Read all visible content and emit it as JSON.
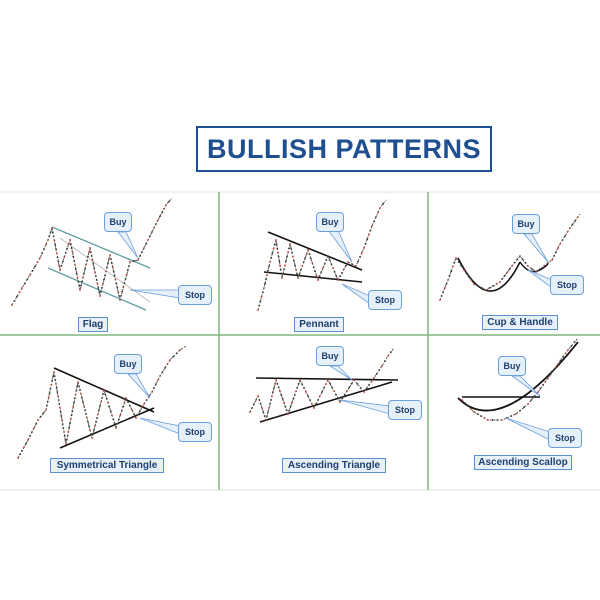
{
  "title": "BULLISH PATTERNS",
  "callouts": {
    "buy": "Buy",
    "stop": "Stop"
  },
  "patterns": [
    {
      "name": "Flag"
    },
    {
      "name": "Pennant"
    },
    {
      "name": "Cup & Handle"
    },
    {
      "name": "Symmetrical Triangle"
    },
    {
      "name": "Ascending Triangle"
    },
    {
      "name": "Ascending Scallop"
    }
  ],
  "colors": {
    "title": "#1d4f91",
    "grid_divider": "#7fb77e",
    "callout_border": "#6aa0dd",
    "callout_fill": "#e6f0fb",
    "price_line": "#555555",
    "price_dot": "#c0392b"
  }
}
